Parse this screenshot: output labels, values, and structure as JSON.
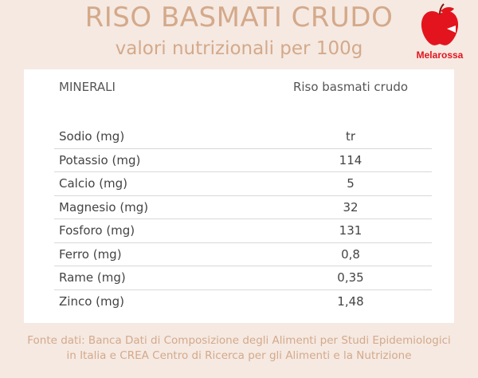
{
  "header": {
    "title": "RISO BASMATI CRUDO",
    "subtitle": "valori nutrizionali per 100g"
  },
  "logo": {
    "icon": "apple-icon",
    "label": "Melarossa",
    "color": "#e3141d"
  },
  "table": {
    "column_headers": [
      "MINERALI",
      "Riso basmati crudo"
    ],
    "rows": [
      {
        "label": "Sodio (mg)",
        "value": "tr"
      },
      {
        "label": "Potassio (mg)",
        "value": "114"
      },
      {
        "label": "Calcio (mg)",
        "value": "5"
      },
      {
        "label": "Magnesio (mg)",
        "value": "32"
      },
      {
        "label": "Fosforo (mg)",
        "value": "131"
      },
      {
        "label": "Ferro (mg)",
        "value": "0,8"
      },
      {
        "label": "Rame (mg)",
        "value": "0,35"
      },
      {
        "label": "Zinco (mg)",
        "value": "1,48"
      }
    ]
  },
  "footer": {
    "source_line1": "Fonte dati: Banca Dati di Composizione degli Alimenti per Studi Epidemiologici",
    "source_line2": "in Italia e CREA Centro di Ricerca per gli Alimenti e la Nutrizione"
  },
  "colors": {
    "background": "#f5e9e2",
    "accent_text": "#d4a98a",
    "card": "#ffffff"
  }
}
